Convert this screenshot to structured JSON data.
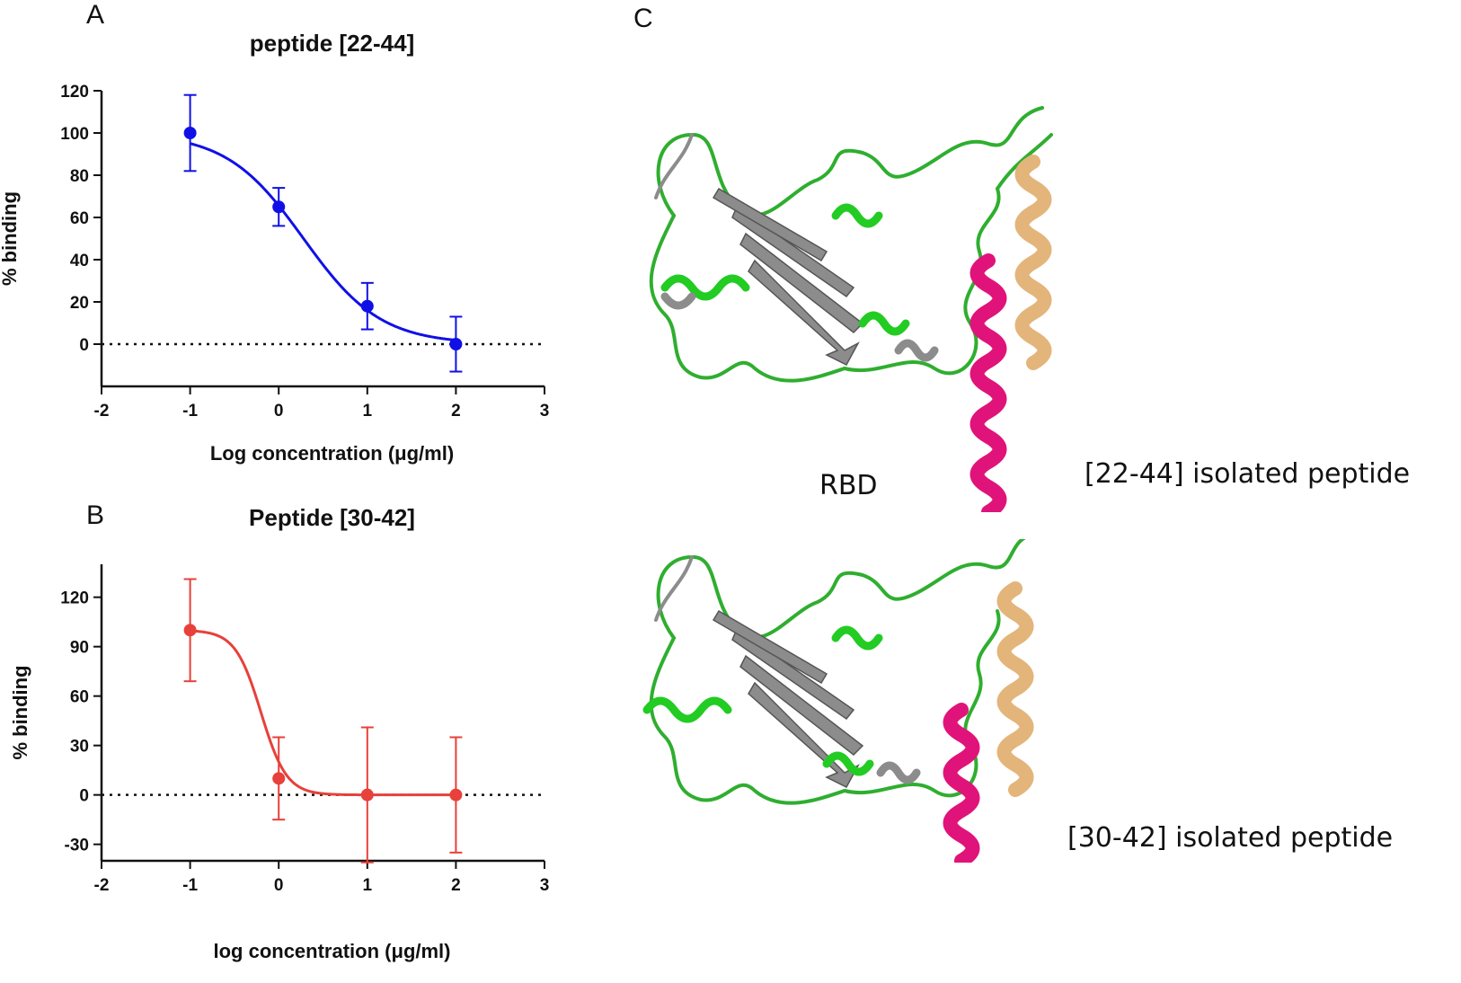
{
  "panels": {
    "a": "A",
    "b": "B",
    "c": "C"
  },
  "structure": {
    "rbd_label": "RBD",
    "peptide_1_label": "[22-44] isolated peptide",
    "peptide_2_label": "[30-42] isolated peptide",
    "colors": {
      "rbd_loop": "#2fae2f",
      "rbd_strand": "#8c8c8c",
      "rbd_helix": "#22cc22",
      "ace2_helix": "#e3b57a",
      "peptide_helix": "#e0137a"
    }
  },
  "chart_data": [
    {
      "type": "scatter",
      "title": "peptide [22-44]",
      "xlabel": "Log concentration (μg/ml)",
      "ylabel": "% binding",
      "xlim": [
        -2,
        3
      ],
      "ylim": [
        -20,
        120
      ],
      "x_ticks": [
        -2,
        -1,
        0,
        1,
        2,
        3
      ],
      "y_ticks": [
        0,
        20,
        40,
        60,
        80,
        100,
        120
      ],
      "color": "#1010e6",
      "points": [
        {
          "x": -1,
          "y": 100,
          "err": 18
        },
        {
          "x": 0,
          "y": 65,
          "err": 9
        },
        {
          "x": 1,
          "y": 18,
          "err": 11
        },
        {
          "x": 2,
          "y": 0,
          "err": 13
        }
      ],
      "fit": {
        "model": "sigmoid",
        "top": 100,
        "bottom": 0,
        "logIC50": 0.28,
        "hill": 1.0
      },
      "reference_line": {
        "y": 0,
        "style": "dotted"
      },
      "grid": false
    },
    {
      "type": "scatter",
      "title": "Peptide [30-42]",
      "xlabel": "log concentration (μg/ml)",
      "ylabel": "% binding",
      "xlim": [
        -2,
        3
      ],
      "ylim": [
        -40,
        140
      ],
      "x_ticks": [
        -2,
        -1,
        0,
        1,
        2,
        3
      ],
      "y_ticks": [
        -30,
        0,
        30,
        60,
        90,
        120
      ],
      "color": "#e8403a",
      "points": [
        {
          "x": -1,
          "y": 100,
          "err": 31
        },
        {
          "x": 0,
          "y": 10,
          "err": 25
        },
        {
          "x": 1,
          "y": 0,
          "err": 41
        },
        {
          "x": 2,
          "y": 0,
          "err": 35
        }
      ],
      "fit": {
        "model": "sigmoid",
        "top": 100,
        "bottom": 0,
        "logIC50": -0.2,
        "hill": 3.0
      },
      "reference_line": {
        "y": 0,
        "style": "dotted"
      },
      "grid": false
    }
  ]
}
